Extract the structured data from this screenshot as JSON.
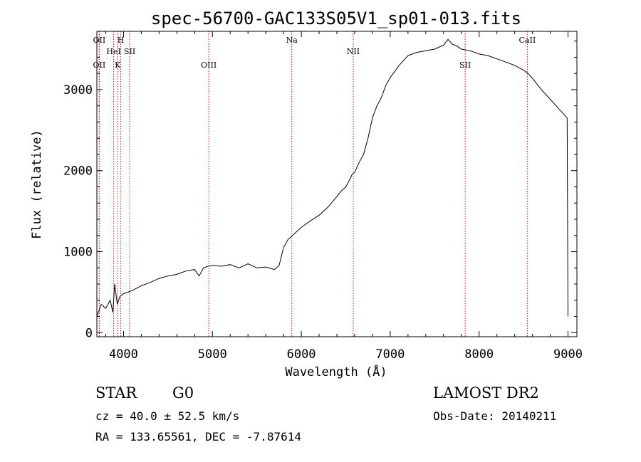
{
  "chart_data": {
    "type": "line",
    "title": "spec-56700-GAC133S05V1_sp01-013.fits",
    "xlabel": "Wavelength (Å)",
    "ylabel": "Flux (relative)",
    "xlim": [
      3700,
      9100
    ],
    "ylim": [
      -50,
      3720
    ],
    "x_ticks": [
      4000,
      5000,
      6000,
      7000,
      8000,
      9000
    ],
    "y_ticks": [
      0,
      1000,
      2000,
      3000
    ],
    "x_tick_labels": [
      "4000",
      "5000",
      "6000",
      "7000",
      "8000",
      "9000"
    ],
    "y_tick_labels": [
      "0",
      "1000",
      "2000",
      "3000"
    ],
    "grid": false,
    "series": [
      {
        "color": "#000000",
        "x": [
          3700,
          3750,
          3800,
          3850,
          3880,
          3900,
          3930,
          3960,
          4000,
          4050,
          4100,
          4200,
          4300,
          4400,
          4500,
          4600,
          4700,
          4800,
          4850,
          4900,
          4950,
          5000,
          5100,
          5200,
          5300,
          5400,
          5500,
          5600,
          5700,
          5750,
          5800,
          5850,
          5900,
          5950,
          6000,
          6100,
          6200,
          6300,
          6400,
          6450,
          6500,
          6550,
          6570,
          6600,
          6650,
          6700,
          6750,
          6800,
          6850,
          6900,
          6950,
          7000,
          7100,
          7200,
          7300,
          7400,
          7500,
          7600,
          7650,
          7700,
          7750,
          7800,
          7900,
          8000,
          8100,
          8200,
          8300,
          8400,
          8500,
          8550,
          8600,
          8700,
          8800,
          8900,
          8950,
          8990,
          9000
        ],
        "y": [
          200,
          350,
          300,
          400,
          250,
          600,
          350,
          450,
          480,
          500,
          520,
          580,
          620,
          670,
          700,
          720,
          760,
          780,
          700,
          800,
          820,
          830,
          820,
          840,
          800,
          850,
          800,
          810,
          780,
          830,
          1050,
          1150,
          1200,
          1250,
          1300,
          1380,
          1450,
          1550,
          1680,
          1750,
          1800,
          1900,
          1950,
          1980,
          2100,
          2200,
          2400,
          2650,
          2800,
          2900,
          3050,
          3150,
          3300,
          3420,
          3460,
          3480,
          3500,
          3550,
          3620,
          3560,
          3540,
          3500,
          3480,
          3440,
          3420,
          3380,
          3340,
          3300,
          3240,
          3200,
          3140,
          3000,
          2880,
          2760,
          2700,
          2650,
          200
        ]
      }
    ],
    "lines": [
      {
        "x": 3727,
        "label": "OII",
        "row": 0
      },
      {
        "x": 3727,
        "label": "OII",
        "row": 2
      },
      {
        "x": 3889,
        "label": "HeI",
        "row": 1
      },
      {
        "x": 3934,
        "label": "K",
        "row": 3
      },
      {
        "x": 3969,
        "label": "H",
        "row": 0
      },
      {
        "x": 4069,
        "label": "SII",
        "row": 1
      },
      {
        "x": 4959,
        "label": "OIII",
        "row": 2
      },
      {
        "x": 5893,
        "label": "Na",
        "row": 0
      },
      {
        "x": 6584,
        "label": "NII",
        "row": 1
      },
      {
        "x": 7843,
        "label": "SII",
        "row": 2
      },
      {
        "x": 8542,
        "label": "CaII",
        "row": 0
      }
    ],
    "line_color": "#b22222"
  },
  "info": {
    "class_label": "STAR",
    "subclass": "G0",
    "cz_text": "cz = 40.0 ± 52.5 km/s",
    "radec_text": "RA = 133.65561, DEC =  -7.87614",
    "survey": "LAMOST DR2",
    "obs_date": "Obs-Date: 20140211"
  }
}
